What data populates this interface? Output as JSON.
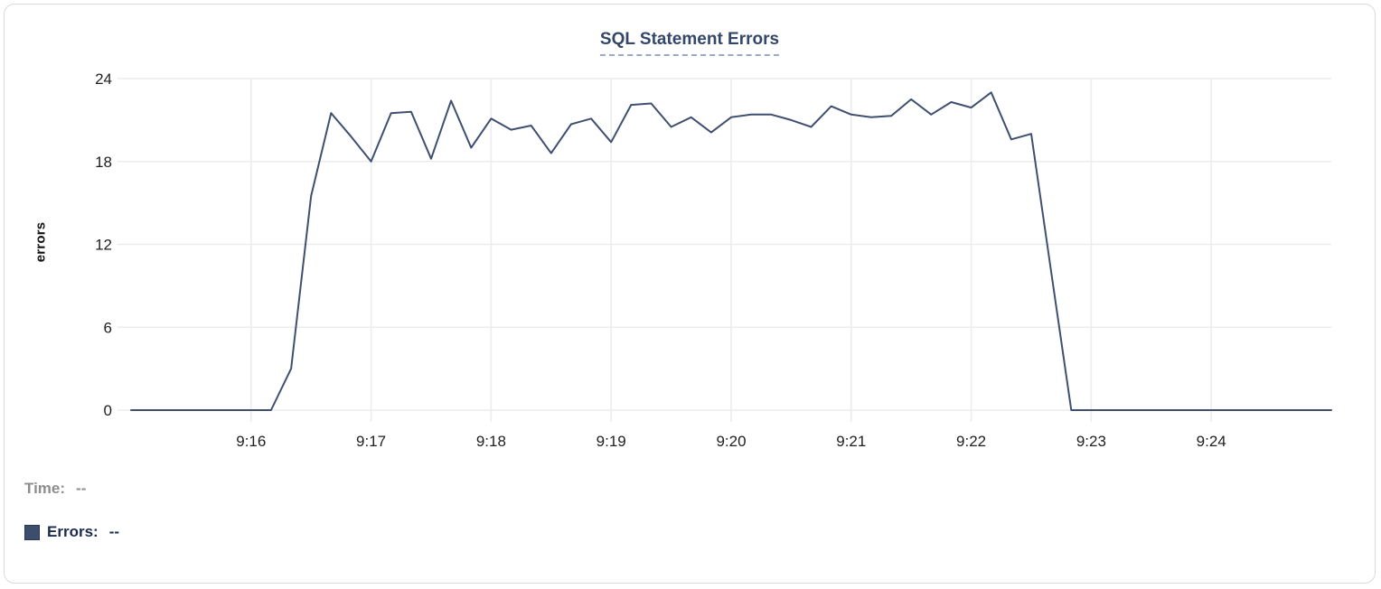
{
  "chart_data": {
    "type": "line",
    "title": "SQL Statement Errors",
    "xlabel": "",
    "ylabel": "errors",
    "ylim": [
      0,
      24
    ],
    "y_ticks": [
      0,
      6,
      12,
      18,
      24
    ],
    "x_ticks": [
      "9:16",
      "9:17",
      "9:18",
      "9:19",
      "9:20",
      "9:21",
      "9:22",
      "9:23",
      "9:24"
    ],
    "x_domain": [
      "9:15:00",
      "9:25:00"
    ],
    "grid": true,
    "legend_position": "bottom-left",
    "colors": {
      "line": "#3f4f70",
      "grid": "#ececec",
      "tick_text": "#1f1f1f",
      "title_text": "#33476b"
    },
    "series": [
      {
        "name": "Errors",
        "color": "#3f4f70",
        "points": [
          [
            "9:15:00",
            0
          ],
          [
            "9:15:10",
            0
          ],
          [
            "9:15:20",
            0
          ],
          [
            "9:15:30",
            0
          ],
          [
            "9:15:40",
            0
          ],
          [
            "9:15:50",
            0
          ],
          [
            "9:16:00",
            0
          ],
          [
            "9:16:10",
            0
          ],
          [
            "9:16:20",
            3
          ],
          [
            "9:16:30",
            15.5
          ],
          [
            "9:16:40",
            21.5
          ],
          [
            "9:16:50",
            19.8
          ],
          [
            "9:17:00",
            18
          ],
          [
            "9:17:10",
            21.5
          ],
          [
            "9:17:20",
            21.6
          ],
          [
            "9:17:30",
            18.2
          ],
          [
            "9:17:40",
            22.4
          ],
          [
            "9:17:50",
            19
          ],
          [
            "9:18:00",
            21.1
          ],
          [
            "9:18:10",
            20.3
          ],
          [
            "9:18:20",
            20.6
          ],
          [
            "9:18:30",
            18.6
          ],
          [
            "9:18:40",
            20.7
          ],
          [
            "9:18:50",
            21.1
          ],
          [
            "9:19:00",
            19.4
          ],
          [
            "9:19:10",
            22.1
          ],
          [
            "9:19:20",
            22.2
          ],
          [
            "9:19:30",
            20.5
          ],
          [
            "9:19:40",
            21.2
          ],
          [
            "9:19:50",
            20.1
          ],
          [
            "9:20:00",
            21.2
          ],
          [
            "9:20:10",
            21.4
          ],
          [
            "9:20:20",
            21.4
          ],
          [
            "9:20:30",
            21.0
          ],
          [
            "9:20:40",
            20.5
          ],
          [
            "9:20:50",
            22.0
          ],
          [
            "9:21:00",
            21.4
          ],
          [
            "9:21:10",
            21.2
          ],
          [
            "9:21:20",
            21.3
          ],
          [
            "9:21:30",
            22.5
          ],
          [
            "9:21:40",
            21.4
          ],
          [
            "9:21:50",
            22.3
          ],
          [
            "9:22:00",
            21.9
          ],
          [
            "9:22:10",
            23.0
          ],
          [
            "9:22:20",
            19.6
          ],
          [
            "9:22:30",
            20.0
          ],
          [
            "9:22:40",
            10
          ],
          [
            "9:22:50",
            0
          ],
          [
            "9:23:00",
            0
          ],
          [
            "9:23:10",
            0
          ],
          [
            "9:23:20",
            0
          ],
          [
            "9:23:30",
            0
          ],
          [
            "9:23:40",
            0
          ],
          [
            "9:23:50",
            0
          ],
          [
            "9:24:00",
            0
          ],
          [
            "9:24:10",
            0
          ],
          [
            "9:24:20",
            0
          ],
          [
            "9:24:30",
            0
          ],
          [
            "9:24:40",
            0
          ],
          [
            "9:24:50",
            0
          ],
          [
            "9:25:00",
            0
          ]
        ]
      }
    ]
  },
  "legend": {
    "time_label": "Time:",
    "time_value": "--",
    "errors_label": "Errors:",
    "errors_value": "--",
    "swatch_color": "#3e4d6c"
  }
}
